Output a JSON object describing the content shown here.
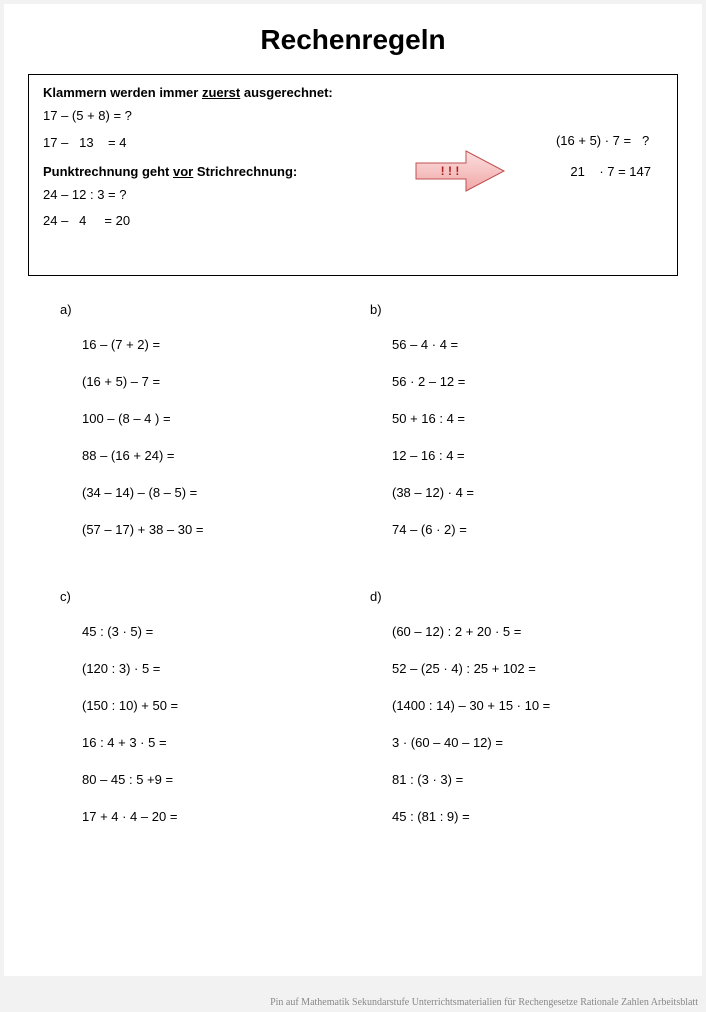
{
  "title": "Rechenregeln",
  "rules": {
    "heading1_pre": "Klammern werden immer ",
    "heading1_u": "zuerst",
    "heading1_post": " ausgerechnet:",
    "line1a": "17 – (5 + 8) = ?",
    "line1b": "17 –   13    = 4",
    "heading2_pre": "Punktrechnung geht ",
    "heading2_u": "vor",
    "heading2_post": " Strichrechnung:",
    "line2a": "24 – 12 : 3 = ?",
    "line2b": "24 –   4     = 20",
    "right1": "(16 + 5) · 7 =   ?",
    "right2": "    21    · 7 = 147",
    "arrow_label": "! ! !",
    "arrow_fill": "#f6b8b8",
    "arrow_stroke": "#c05050"
  },
  "sections": [
    {
      "label": "a)",
      "problems": [
        "16 – (7 + 2) =",
        "(16 + 5) – 7 =",
        "100 – (8 – 4 ) =",
        "88 – (16 + 24) =",
        "(34 – 14) – (8 – 5) =",
        "(57 – 17) + 38 – 30 ="
      ]
    },
    {
      "label": "b)",
      "problems": [
        "56 – 4 · 4 =",
        "56 · 2 – 12 =",
        "50 + 16 : 4 =",
        "12 – 16 : 4 =",
        "(38 – 12) · 4 =",
        "74 – (6 · 2) ="
      ]
    },
    {
      "label": "c)",
      "problems": [
        "45 : (3 · 5) =",
        "(120 : 3) · 5 =",
        "(150 : 10) + 50 =",
        "16 : 4 + 3 · 5 =",
        "80 – 45 : 5 +9 =",
        "17 + 4 · 4 – 20 ="
      ]
    },
    {
      "label": "d)",
      "problems": [
        "(60 – 12) : 2 + 20 · 5 =",
        "52 – (25 · 4) : 25 + 102 =",
        "(1400 : 14) – 30 + 15 · 10 =",
        "3 · (60 – 40 – 12) =",
        "81 : (3 · 3) =",
        "45 : (81 : 9) ="
      ]
    }
  ],
  "caption": "Pin auf Mathematik Sekundarstufe Unterrichtsmaterialien für Rechengesetze Rationale Zahlen Arbeitsblatt"
}
